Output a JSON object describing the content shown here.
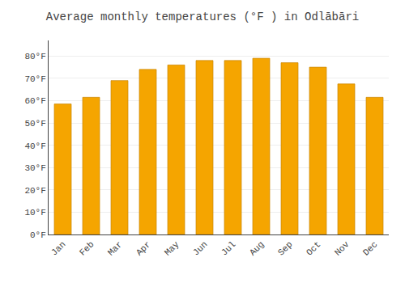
{
  "chart_data": {
    "type": "bar",
    "title": "Average monthly temperatures (°F ) in Odlābāri",
    "categories": [
      "Jan",
      "Feb",
      "Mar",
      "Apr",
      "May",
      "Jun",
      "Jul",
      "Aug",
      "Sep",
      "Oct",
      "Nov",
      "Dec"
    ],
    "values": [
      58.5,
      61.5,
      69.0,
      74.0,
      76.0,
      78.0,
      78.0,
      79.0,
      77.0,
      75.0,
      67.5,
      61.5
    ],
    "color": "#F5A500",
    "ylim": [
      0,
      87
    ],
    "yticks": [
      {
        "value": 0,
        "label": "0°F"
      },
      {
        "value": 10,
        "label": "10°F"
      },
      {
        "value": 20,
        "label": "20°F"
      },
      {
        "value": 30,
        "label": "30°F"
      },
      {
        "value": 40,
        "label": "40°F"
      },
      {
        "value": 50,
        "label": "50°F"
      },
      {
        "value": 60,
        "label": "60°F"
      },
      {
        "value": 70,
        "label": "70°F"
      },
      {
        "value": 80,
        "label": "80°F"
      }
    ],
    "grid": true
  }
}
